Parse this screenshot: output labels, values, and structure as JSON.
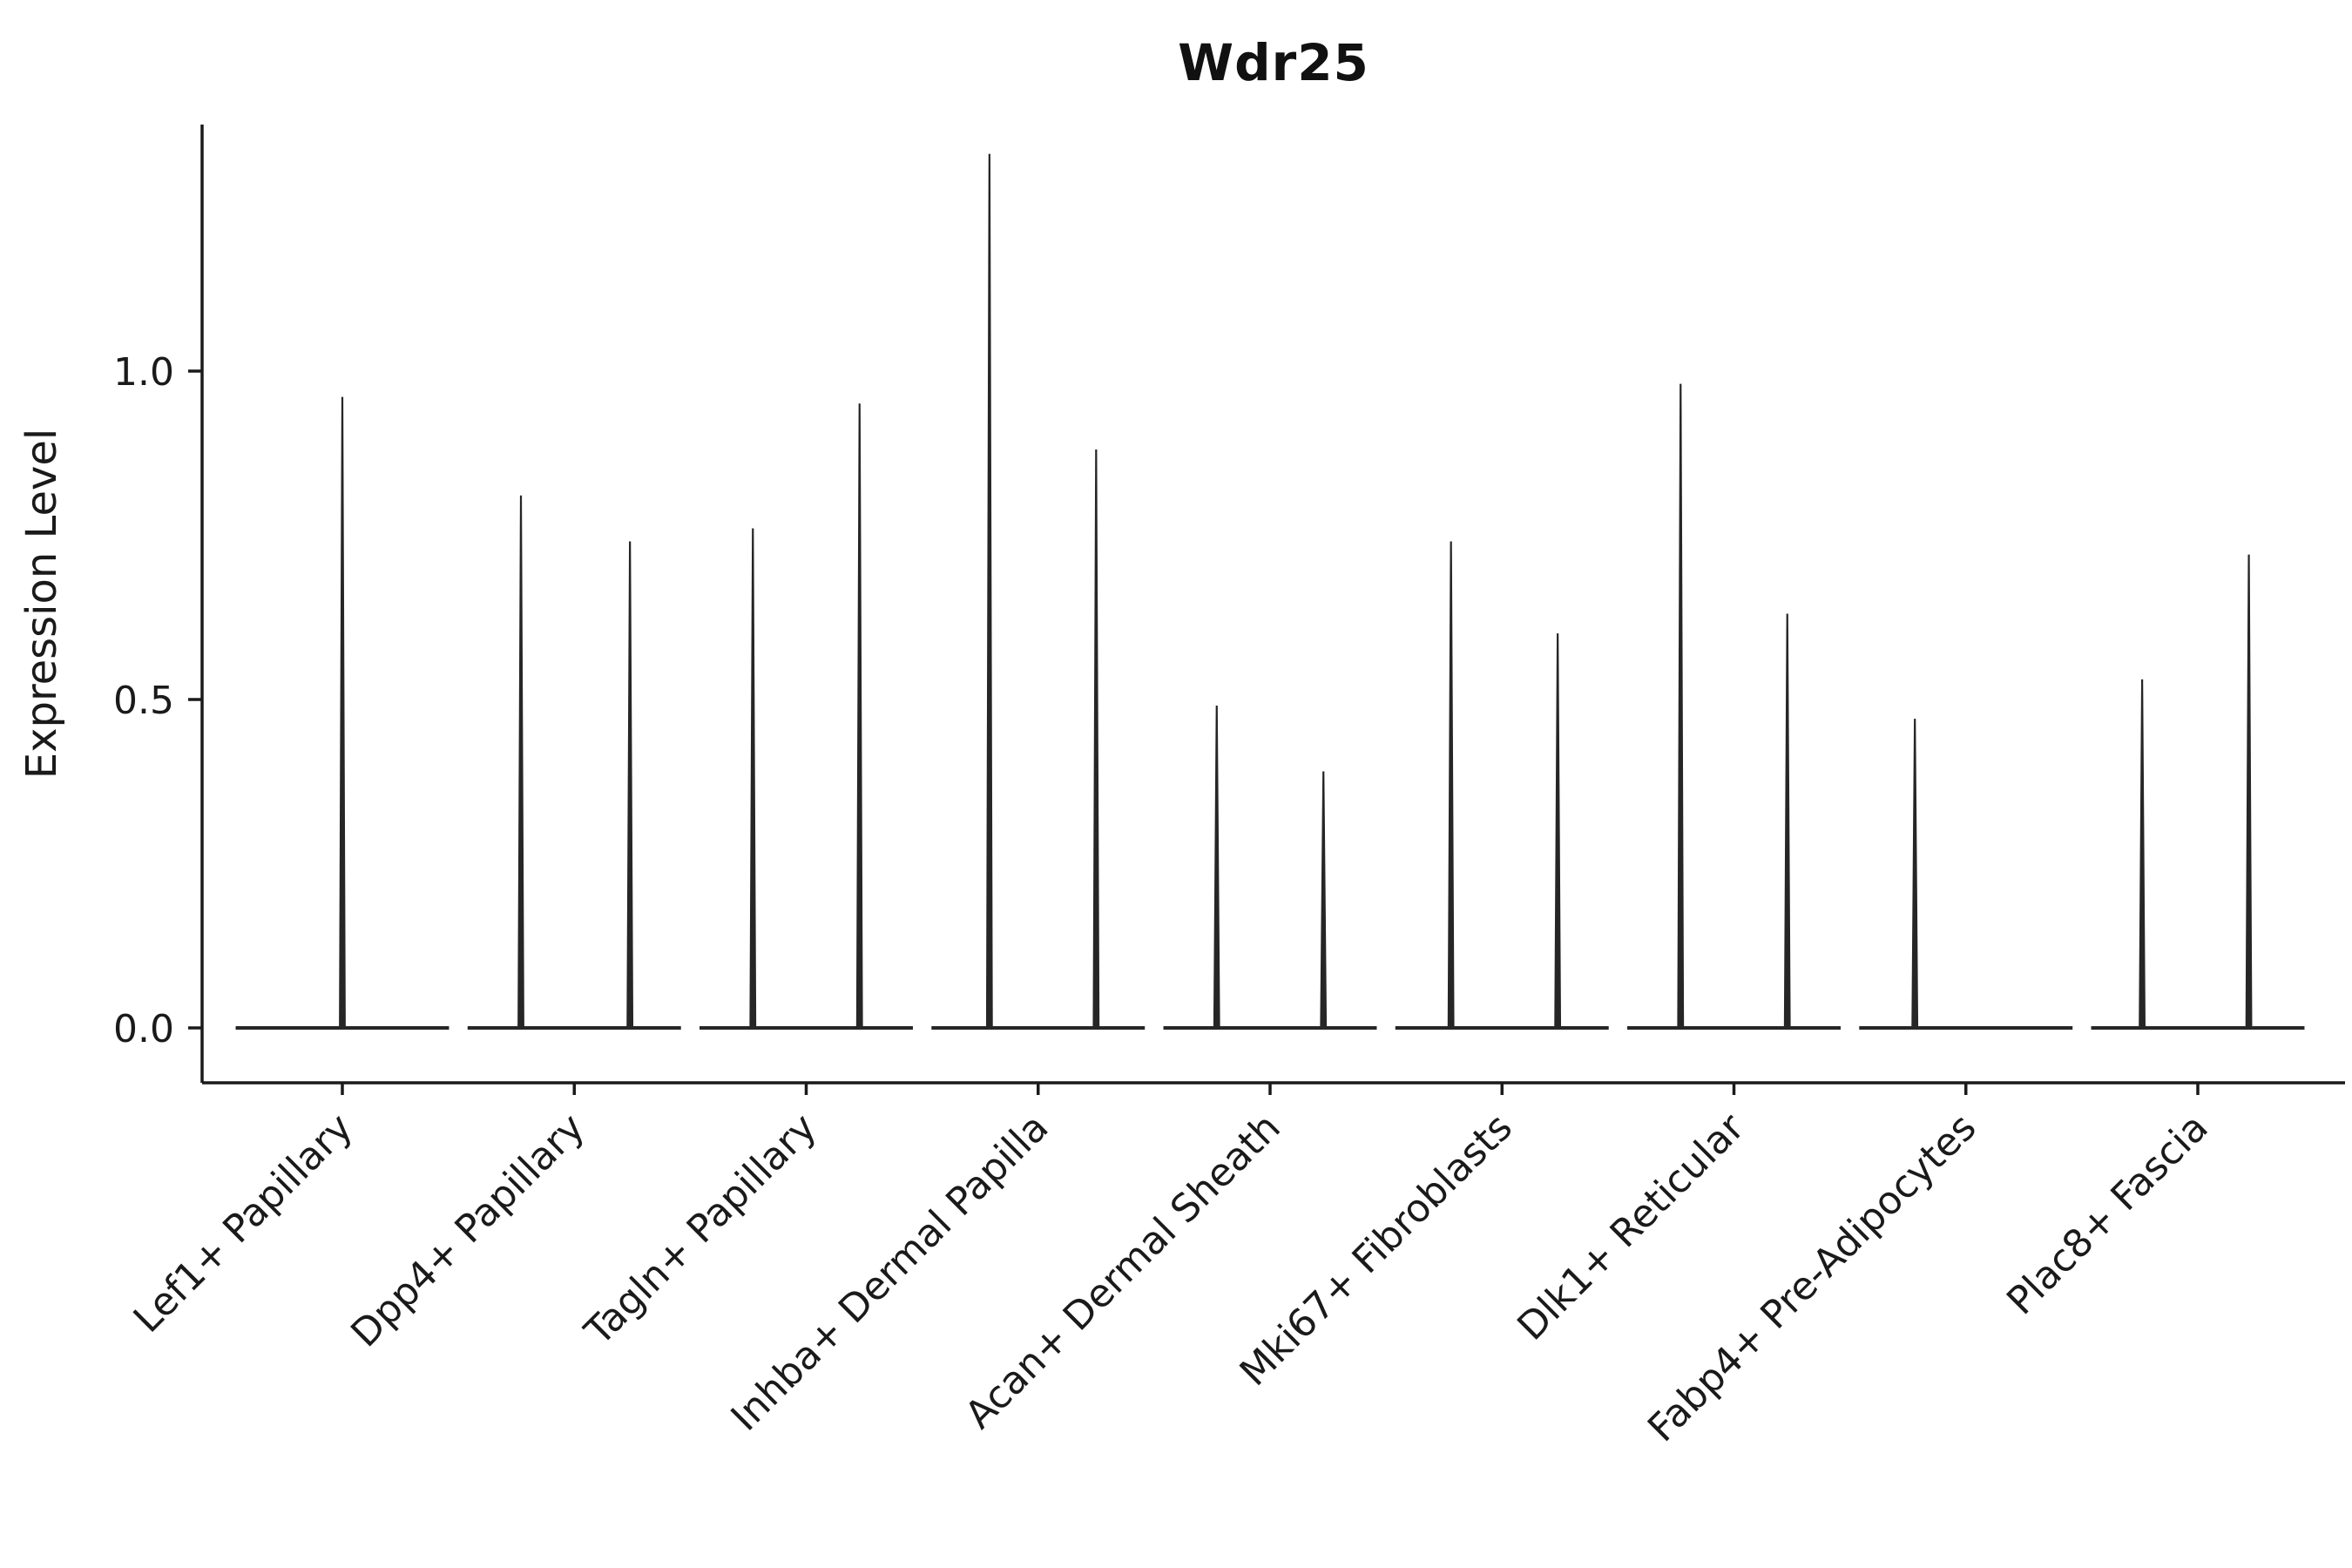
{
  "figure": {
    "title": "Wdr25"
  },
  "chart_data": {
    "type": "violin",
    "title": "Wdr25",
    "xlabel": "",
    "ylabel": "Expression Level",
    "grid": false,
    "legend": "none",
    "ylim": [
      -0.085,
      1.375
    ],
    "yticks": [
      "0.0",
      "0.5",
      "1.0"
    ],
    "ytick_values": [
      0.0,
      0.5,
      1.0
    ],
    "categories": [
      "Lef1+ Papillary",
      "Dpp4+ Papillary",
      "Tagln+ Papillary",
      "Inhba+ Dermal Papilla",
      "Acan+ Dermal Sheath",
      "Mki67+ Fibroblasts",
      "Dlk1+ Reticular",
      "Fabp4+ Pre-Adipocytes",
      "Plac8+ Fascia"
    ],
    "violins": [
      {
        "category": "Lef1+ Papillary",
        "spikes": [
          {
            "offset": 0.0,
            "max": 0.96
          }
        ]
      },
      {
        "category": "Dpp4+ Papillary",
        "spikes": [
          {
            "offset": -0.23,
            "max": 0.81
          },
          {
            "offset": 0.24,
            "max": 0.74
          }
        ]
      },
      {
        "category": "Tagln+ Papillary",
        "spikes": [
          {
            "offset": -0.23,
            "max": 0.76
          },
          {
            "offset": 0.23,
            "max": 0.95
          }
        ]
      },
      {
        "category": "Inhba+ Dermal Papilla",
        "spikes": [
          {
            "offset": -0.21,
            "max": 1.33
          },
          {
            "offset": 0.25,
            "max": 0.88
          }
        ]
      },
      {
        "category": "Acan+ Dermal Sheath",
        "spikes": [
          {
            "offset": -0.23,
            "max": 0.49
          },
          {
            "offset": 0.23,
            "max": 0.39
          }
        ]
      },
      {
        "category": "Mki67+ Fibroblasts",
        "spikes": [
          {
            "offset": -0.22,
            "max": 0.74
          },
          {
            "offset": 0.24,
            "max": 0.6
          }
        ]
      },
      {
        "category": "Dlk1+ Reticular",
        "spikes": [
          {
            "offset": -0.23,
            "max": 0.98
          },
          {
            "offset": 0.23,
            "max": 0.63
          }
        ]
      },
      {
        "category": "Fabp4+ Pre-Adipocytes",
        "spikes": [
          {
            "offset": -0.22,
            "max": 0.47
          }
        ]
      },
      {
        "category": "Plac8+ Fascia",
        "spikes": [
          {
            "offset": -0.24,
            "max": 0.53
          },
          {
            "offset": 0.22,
            "max": 0.72
          }
        ]
      }
    ],
    "baseline_value": 0.0,
    "baseline_halfwidth_fraction": 0.46,
    "colors": {
      "ink": "#1a1a1a",
      "violin": "#262626",
      "background": "#ffffff"
    }
  }
}
